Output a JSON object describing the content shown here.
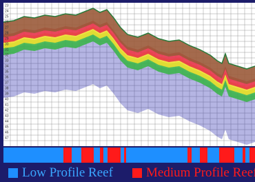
{
  "depth_labels": [
    "23",
    "24",
    "25",
    "26",
    "27",
    "28",
    "29",
    "30",
    "31",
    "32",
    "33",
    "34",
    "35",
    "36",
    "37",
    "38",
    "39",
    "40",
    "41",
    "42",
    "43",
    "44",
    "45",
    "46",
    "47"
  ],
  "legend": [
    {
      "label": "Low Profile Reef",
      "color": "#1e8fff"
    },
    {
      "label": "Medium Profile Reef",
      "color": "#ff1a1a"
    }
  ]
}
